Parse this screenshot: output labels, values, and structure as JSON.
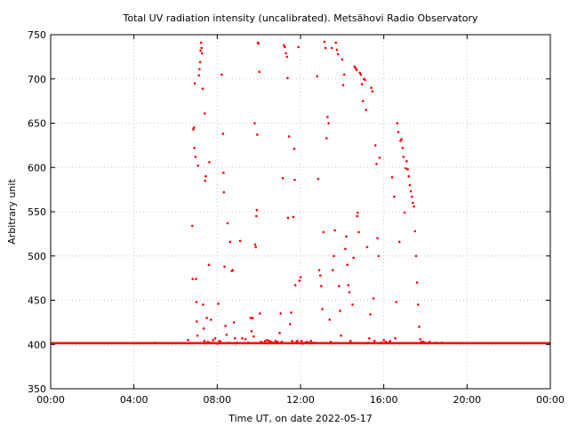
{
  "chart_data": {
    "type": "scatter",
    "title": "Total UV radiation intensity (uncalibrated). Metsähovi Radio Observatory",
    "xlabel": "Time UT, on date 2022-05-17",
    "ylabel": "Arbitrary unit",
    "xlim": [
      0,
      24
    ],
    "ylim": [
      350,
      750
    ],
    "xticks": [
      0,
      4,
      8,
      12,
      16,
      20,
      24
    ],
    "xtick_labels": [
      "00:00",
      "04:00",
      "08:00",
      "12:00",
      "16:00",
      "20:00",
      "00:00"
    ],
    "yticks": [
      350,
      400,
      450,
      500,
      550,
      600,
      650,
      700,
      750
    ],
    "ytick_labels": [
      "350",
      "400",
      "450",
      "500",
      "550",
      "600",
      "650",
      "700",
      "750"
    ],
    "grid": true,
    "legend": "none",
    "marker_color": "#ff0000",
    "baseline": {
      "value": 401.5,
      "from": 0.0,
      "to": 24.0
    },
    "series": [
      {
        "points": [
          [
            5.0,
            402
          ],
          [
            6.6,
            405
          ],
          [
            6.8,
            534
          ],
          [
            6.82,
            474
          ],
          [
            6.85,
            643
          ],
          [
            6.88,
            645
          ],
          [
            6.9,
            622
          ],
          [
            6.92,
            695
          ],
          [
            6.95,
            612
          ],
          [
            6.98,
            474
          ],
          [
            7.0,
            448
          ],
          [
            7.02,
            426
          ],
          [
            7.05,
            410
          ],
          [
            7.08,
            602
          ],
          [
            7.12,
            704
          ],
          [
            7.15,
            711
          ],
          [
            7.18,
            719
          ],
          [
            7.2,
            732
          ],
          [
            7.22,
            741
          ],
          [
            7.25,
            735
          ],
          [
            7.27,
            729
          ],
          [
            7.3,
            689
          ],
          [
            7.32,
            445
          ],
          [
            7.35,
            418
          ],
          [
            7.38,
            404
          ],
          [
            7.4,
            661
          ],
          [
            7.42,
            585
          ],
          [
            7.45,
            590
          ],
          [
            7.5,
            430
          ],
          [
            7.55,
            403
          ],
          [
            7.6,
            490
          ],
          [
            7.62,
            606
          ],
          [
            7.65,
            402
          ],
          [
            7.7,
            428
          ],
          [
            7.75,
            402
          ],
          [
            7.8,
            405
          ],
          [
            7.9,
            407
          ],
          [
            8.0,
            401
          ],
          [
            8.05,
            446
          ],
          [
            8.1,
            404
          ],
          [
            8.15,
            403
          ],
          [
            8.22,
            705
          ],
          [
            8.28,
            638
          ],
          [
            8.3,
            594
          ],
          [
            8.32,
            572
          ],
          [
            8.35,
            488
          ],
          [
            8.4,
            421
          ],
          [
            8.45,
            411
          ],
          [
            8.5,
            537
          ],
          [
            8.55,
            402
          ],
          [
            8.62,
            516
          ],
          [
            8.7,
            483
          ],
          [
            8.75,
            484
          ],
          [
            8.8,
            425
          ],
          [
            8.85,
            407
          ],
          [
            8.95,
            402
          ],
          [
            9.1,
            517
          ],
          [
            9.2,
            407
          ],
          [
            9.35,
            406
          ],
          [
            9.5,
            402
          ],
          [
            9.6,
            430
          ],
          [
            9.65,
            415
          ],
          [
            9.7,
            430
          ],
          [
            9.75,
            409
          ],
          [
            9.8,
            650
          ],
          [
            9.82,
            513
          ],
          [
            9.85,
            510
          ],
          [
            9.88,
            545
          ],
          [
            9.9,
            552
          ],
          [
            9.92,
            637
          ],
          [
            9.95,
            741
          ],
          [
            9.98,
            740
          ],
          [
            10.02,
            708
          ],
          [
            10.05,
            435
          ],
          [
            10.1,
            403
          ],
          [
            10.2,
            402
          ],
          [
            10.3,
            404
          ],
          [
            10.4,
            405
          ],
          [
            10.5,
            404
          ],
          [
            10.6,
            403
          ],
          [
            10.7,
            402
          ],
          [
            10.8,
            404
          ],
          [
            10.9,
            403
          ],
          [
            11.0,
            413
          ],
          [
            11.05,
            435
          ],
          [
            11.1,
            403
          ],
          [
            11.15,
            588
          ],
          [
            11.2,
            738
          ],
          [
            11.25,
            736
          ],
          [
            11.3,
            729
          ],
          [
            11.35,
            725
          ],
          [
            11.38,
            701
          ],
          [
            11.4,
            543
          ],
          [
            11.45,
            635
          ],
          [
            11.5,
            423
          ],
          [
            11.55,
            436
          ],
          [
            11.6,
            404
          ],
          [
            11.65,
            544
          ],
          [
            11.7,
            621
          ],
          [
            11.72,
            586
          ],
          [
            11.75,
            467
          ],
          [
            11.8,
            403
          ],
          [
            11.85,
            404
          ],
          [
            11.9,
            736
          ],
          [
            11.95,
            472
          ],
          [
            12.0,
            476
          ],
          [
            12.05,
            404
          ],
          [
            12.1,
            401
          ],
          [
            12.2,
            402
          ],
          [
            12.3,
            403
          ],
          [
            12.4,
            402
          ],
          [
            12.5,
            404
          ],
          [
            12.6,
            402
          ],
          [
            12.7,
            402
          ],
          [
            12.8,
            703
          ],
          [
            12.85,
            587
          ],
          [
            12.9,
            484
          ],
          [
            12.95,
            478
          ],
          [
            13.0,
            466
          ],
          [
            13.05,
            440
          ],
          [
            13.1,
            527
          ],
          [
            13.15,
            742
          ],
          [
            13.2,
            735
          ],
          [
            13.25,
            633
          ],
          [
            13.3,
            657
          ],
          [
            13.35,
            650
          ],
          [
            13.4,
            428
          ],
          [
            13.45,
            403
          ],
          [
            13.5,
            735
          ],
          [
            13.55,
            484
          ],
          [
            13.6,
            500
          ],
          [
            13.65,
            529
          ],
          [
            13.7,
            741
          ],
          [
            13.75,
            733
          ],
          [
            13.8,
            728
          ],
          [
            13.85,
            466
          ],
          [
            13.9,
            438
          ],
          [
            13.95,
            410
          ],
          [
            14.0,
            722
          ],
          [
            14.05,
            693
          ],
          [
            14.1,
            705
          ],
          [
            14.15,
            508
          ],
          [
            14.2,
            522
          ],
          [
            14.25,
            490
          ],
          [
            14.3,
            467
          ],
          [
            14.35,
            459
          ],
          [
            14.4,
            404
          ],
          [
            14.5,
            445
          ],
          [
            14.55,
            498
          ],
          [
            14.6,
            714
          ],
          [
            14.65,
            712
          ],
          [
            14.7,
            710
          ],
          [
            14.72,
            545
          ],
          [
            14.75,
            549
          ],
          [
            14.8,
            527
          ],
          [
            14.85,
            707
          ],
          [
            14.9,
            705
          ],
          [
            14.95,
            694
          ],
          [
            15.0,
            675
          ],
          [
            15.05,
            700
          ],
          [
            15.1,
            699
          ],
          [
            15.15,
            665
          ],
          [
            15.2,
            510
          ],
          [
            15.25,
            402
          ],
          [
            15.3,
            407
          ],
          [
            15.35,
            434
          ],
          [
            15.4,
            690
          ],
          [
            15.45,
            686
          ],
          [
            15.5,
            452
          ],
          [
            15.55,
            404
          ],
          [
            15.6,
            625
          ],
          [
            15.65,
            604
          ],
          [
            15.7,
            520
          ],
          [
            15.75,
            500
          ],
          [
            15.8,
            611
          ],
          [
            15.85,
            402
          ],
          [
            15.9,
            402
          ],
          [
            16.0,
            405
          ],
          [
            16.1,
            403
          ],
          [
            16.2,
            402
          ],
          [
            16.3,
            404
          ],
          [
            16.4,
            589
          ],
          [
            16.5,
            567
          ],
          [
            16.55,
            407
          ],
          [
            16.6,
            448
          ],
          [
            16.65,
            650
          ],
          [
            16.7,
            640
          ],
          [
            16.75,
            516
          ],
          [
            16.8,
            630
          ],
          [
            16.85,
            632
          ],
          [
            16.9,
            622
          ],
          [
            16.95,
            612
          ],
          [
            17.0,
            549
          ],
          [
            17.05,
            599
          ],
          [
            17.1,
            607
          ],
          [
            17.15,
            598
          ],
          [
            17.2,
            590
          ],
          [
            17.25,
            580
          ],
          [
            17.3,
            573
          ],
          [
            17.35,
            567
          ],
          [
            17.4,
            560
          ],
          [
            17.45,
            556
          ],
          [
            17.5,
            528
          ],
          [
            17.55,
            500
          ],
          [
            17.6,
            470
          ],
          [
            17.65,
            445
          ],
          [
            17.7,
            420
          ],
          [
            17.75,
            406
          ],
          [
            17.8,
            403
          ],
          [
            17.85,
            402
          ],
          [
            17.9,
            403
          ],
          [
            18.0,
            402
          ],
          [
            18.2,
            403
          ],
          [
            18.5,
            402
          ],
          [
            18.8,
            402
          ]
        ]
      }
    ]
  }
}
